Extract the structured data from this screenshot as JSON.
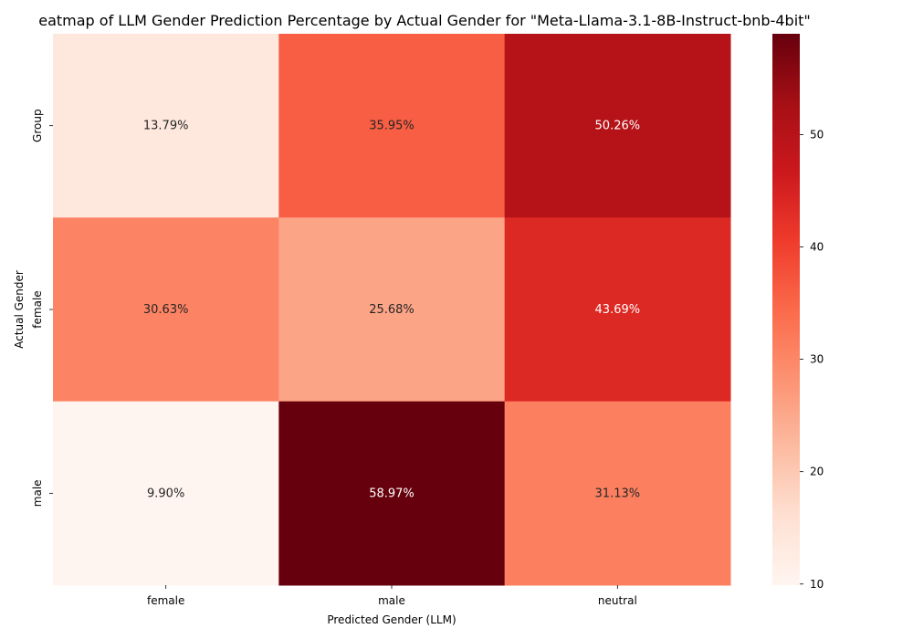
{
  "chart_data": {
    "type": "heatmap",
    "title": "eatmap of LLM Gender Prediction Percentage by Actual Gender for \"Meta-Llama-3.1-8B-Instruct-bnb-4bit\"",
    "xlabel": "Predicted Gender (LLM)",
    "ylabel": "Actual Gender",
    "x_categories": [
      "female",
      "male",
      "neutral"
    ],
    "y_categories": [
      "Group",
      "female",
      "male"
    ],
    "values": [
      [
        13.79,
        35.95,
        50.26
      ],
      [
        30.63,
        25.68,
        43.69
      ],
      [
        9.9,
        58.97,
        31.13
      ]
    ],
    "cell_labels": [
      [
        "13.79%",
        "35.95%",
        "50.26%"
      ],
      [
        "30.63%",
        "25.68%",
        "43.69%"
      ],
      [
        "9.90%",
        "58.97%",
        "31.13%"
      ]
    ],
    "colormap": "Reds",
    "colorbar": {
      "range": [
        9.9,
        58.97
      ],
      "ticks": [
        10,
        20,
        30,
        40,
        50
      ],
      "tick_labels": [
        "10",
        "20",
        "30",
        "40",
        "50"
      ]
    },
    "label_colors": {
      "light": "#ffffff",
      "dark": "#262626"
    }
  }
}
